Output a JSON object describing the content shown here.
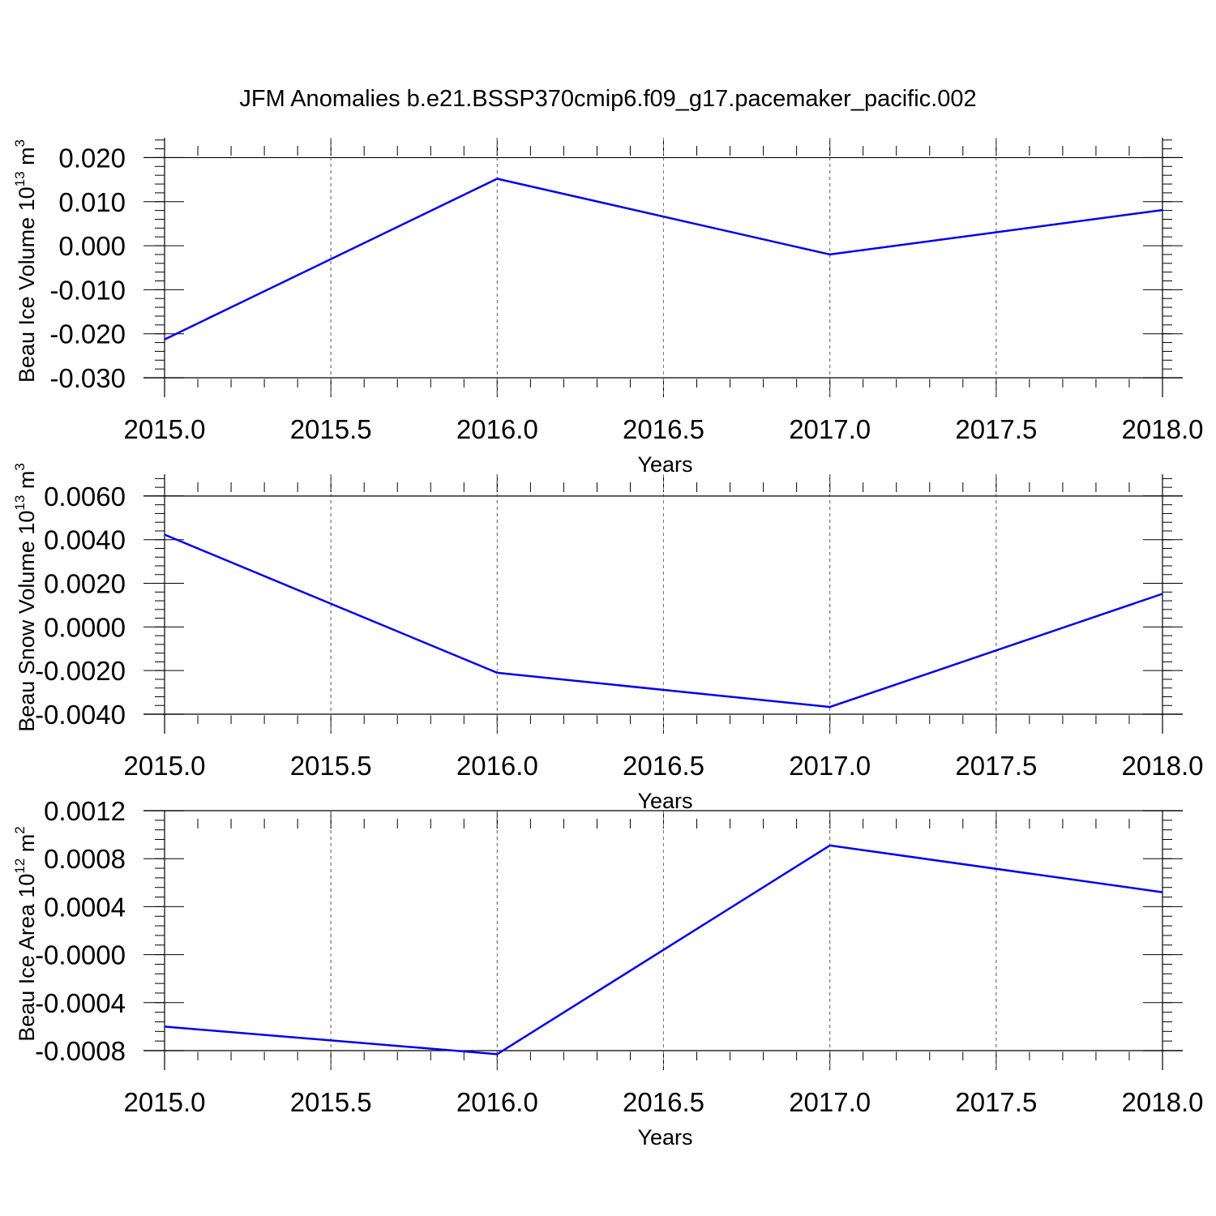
{
  "title": "JFM Anomalies b.e21.BSSP370cmip6.f09_g17.pacemaker_pacific.002",
  "line_color": "#0000ee",
  "grid_color": "#777777",
  "chart_data": [
    {
      "type": "line",
      "xlabel": "Years",
      "ylabel": {
        "text": "Beau Ice Volume 10",
        "exponent": "13",
        "unit": "m",
        "unit_exponent": "3"
      },
      "x_ticks": [
        "2015.0",
        "2015.5",
        "2016.0",
        "2016.5",
        "2017.0",
        "2017.5",
        "2018.0"
      ],
      "y_ticks": [
        "-0.030",
        "-0.020",
        "-0.010",
        "0.000",
        "0.010",
        "0.020"
      ],
      "xlim": [
        2015.0,
        2018.0
      ],
      "ylim": [
        -0.03,
        0.0245
      ],
      "grid": "vertical dashed",
      "x": [
        2015,
        2016,
        2017,
        2018
      ],
      "values": [
        -0.0213,
        0.0152,
        -0.002,
        0.0081
      ]
    },
    {
      "type": "line",
      "xlabel": "Years",
      "ylabel": {
        "text": "Beau Snow Volume 10",
        "exponent": "13",
        "unit": "m",
        "unit_exponent": "3"
      },
      "x_ticks": [
        "2015.0",
        "2015.5",
        "2016.0",
        "2016.5",
        "2017.0",
        "2017.5",
        "2018.0"
      ],
      "y_ticks": [
        "-0.0040",
        "-0.0020",
        "0.0000",
        "0.0020",
        "0.0040",
        "0.0060"
      ],
      "xlim": [
        2015.0,
        2018.0
      ],
      "ylim": [
        -0.004,
        0.007
      ],
      "grid": "vertical dashed",
      "x": [
        2015,
        2016,
        2017,
        2018
      ],
      "values": [
        0.00423,
        -0.0021,
        -0.00367,
        0.00152
      ]
    },
    {
      "type": "line",
      "xlabel": "Years",
      "ylabel": {
        "text": "Beau Ice Area 10",
        "exponent": "12",
        "unit": "m",
        "unit_exponent": "2"
      },
      "x_ticks": [
        "2015.0",
        "2015.5",
        "2016.0",
        "2016.5",
        "2017.0",
        "2017.5",
        "2018.0"
      ],
      "y_ticks": [
        "-0.0008",
        "-0.0004",
        "-0.0000",
        "0.0004",
        "0.0008",
        "0.0012"
      ],
      "xlim": [
        2015.0,
        2018.0
      ],
      "ylim": [
        -0.0009,
        0.0012
      ],
      "grid": "vertical dashed",
      "x": [
        2015,
        2016,
        2017,
        2018
      ],
      "values": [
        -0.0006,
        -0.00083,
        0.00091,
        0.00052
      ]
    }
  ]
}
